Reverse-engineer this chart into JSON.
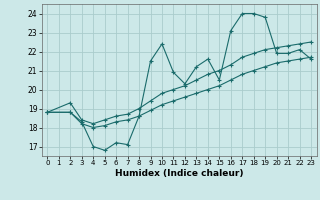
{
  "xlabel": "Humidex (Indice chaleur)",
  "background_color": "#cce8e8",
  "grid_color": "#aacccc",
  "line_color": "#1a6b6b",
  "xlim": [
    -0.5,
    23.5
  ],
  "ylim": [
    16.5,
    24.5
  ],
  "yticks": [
    17,
    18,
    19,
    20,
    21,
    22,
    23,
    24
  ],
  "xticks": [
    0,
    1,
    2,
    3,
    4,
    5,
    6,
    7,
    8,
    9,
    10,
    11,
    12,
    13,
    14,
    15,
    16,
    17,
    18,
    19,
    20,
    21,
    22,
    23
  ],
  "series1_x": [
    0,
    2,
    3,
    4,
    5,
    6,
    7,
    8,
    9,
    10,
    11,
    12,
    13,
    14,
    15,
    16,
    17,
    18,
    19,
    20,
    21,
    22,
    23
  ],
  "series1_y": [
    18.8,
    18.8,
    18.3,
    17.0,
    16.8,
    17.2,
    17.1,
    18.6,
    21.5,
    22.4,
    20.9,
    20.3,
    21.2,
    21.6,
    20.5,
    23.1,
    24.0,
    24.0,
    23.8,
    21.9,
    21.9,
    22.1,
    21.6
  ],
  "series2_x": [
    0,
    2,
    3,
    4,
    5,
    6,
    7,
    8,
    9,
    10,
    11,
    12,
    13,
    14,
    15,
    16,
    17,
    18,
    19,
    20,
    21,
    22,
    23
  ],
  "series2_y": [
    18.8,
    19.3,
    18.4,
    18.2,
    18.4,
    18.6,
    18.7,
    19.0,
    19.4,
    19.8,
    20.0,
    20.2,
    20.5,
    20.8,
    21.0,
    21.3,
    21.7,
    21.9,
    22.1,
    22.2,
    22.3,
    22.4,
    22.5
  ],
  "series3_x": [
    0,
    2,
    3,
    4,
    5,
    6,
    7,
    8,
    9,
    10,
    11,
    12,
    13,
    14,
    15,
    16,
    17,
    18,
    19,
    20,
    21,
    22,
    23
  ],
  "series3_y": [
    18.8,
    18.8,
    18.2,
    18.0,
    18.1,
    18.3,
    18.4,
    18.6,
    18.9,
    19.2,
    19.4,
    19.6,
    19.8,
    20.0,
    20.2,
    20.5,
    20.8,
    21.0,
    21.2,
    21.4,
    21.5,
    21.6,
    21.7
  ]
}
